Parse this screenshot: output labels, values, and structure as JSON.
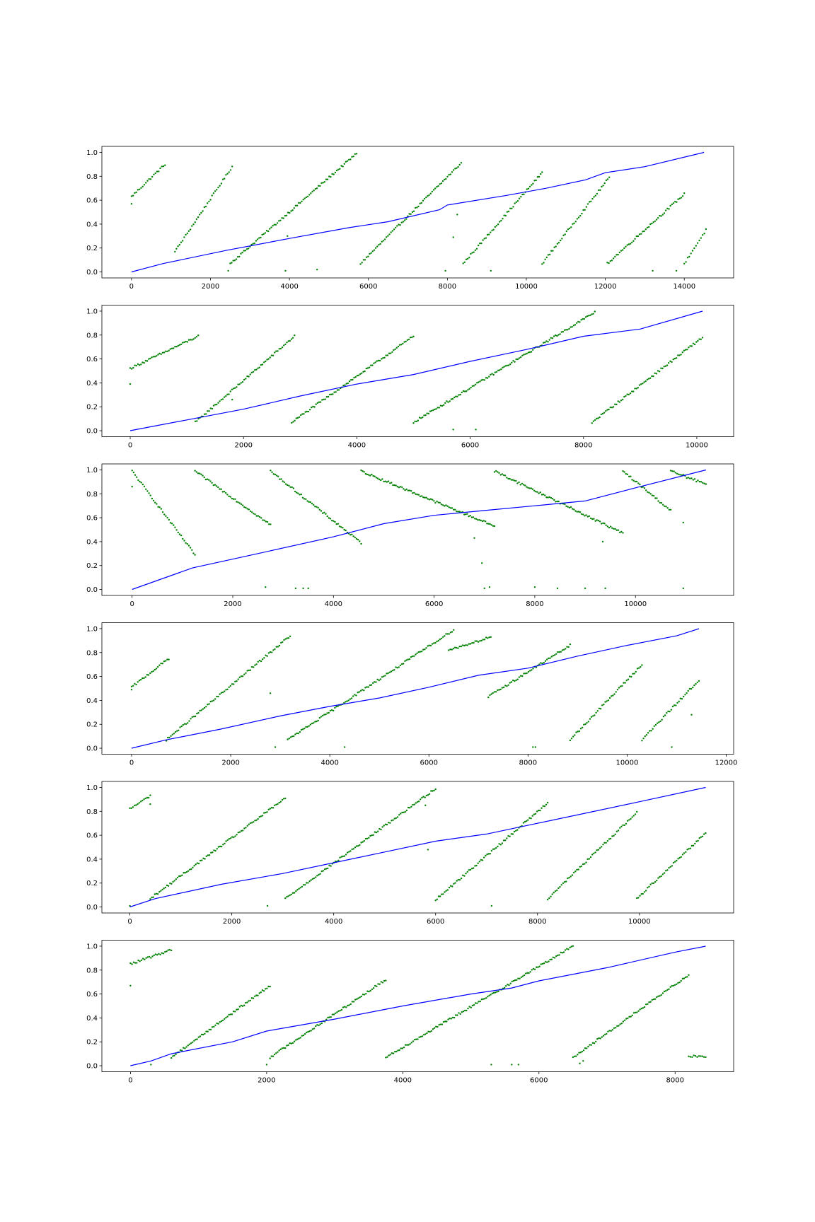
{
  "figure": {
    "background": "#ffffff"
  },
  "colors": {
    "scatter": "#008000",
    "line": "#0000ff",
    "axes": "#000000"
  },
  "chart_data": [
    {
      "type": "scatter",
      "title": "",
      "xlabel": "",
      "ylabel": "",
      "xlim": [
        -750,
        15250
      ],
      "ylim": [
        -0.05,
        1.05
      ],
      "xticks": [
        0,
        2000,
        4000,
        6000,
        8000,
        10000,
        12000,
        14000
      ],
      "yticks": [
        0.0,
        0.2,
        0.4,
        0.6,
        0.8,
        1.0
      ],
      "series": [
        {
          "kind": "scatter",
          "runs": [
            [
              0,
              850,
              0.63,
              0.9
            ],
            [
              1100,
              2550,
              0.17,
              0.88
            ],
            [
              2500,
              5700,
              0.07,
              0.99
            ],
            [
              5800,
              8350,
              0.07,
              0.91
            ],
            [
              8400,
              10400,
              0.07,
              0.83
            ],
            [
              10400,
              12100,
              0.07,
              0.79
            ],
            [
              12050,
              14000,
              0.07,
              0.65
            ],
            [
              14000,
              14550,
              0.07,
              0.35
            ]
          ],
          "extra": [
            [
              0,
              0.57
            ],
            [
              2450,
              0.01
            ],
            [
              3900,
              0.01
            ],
            [
              3950,
              0.3
            ],
            [
              4700,
              0.02
            ],
            [
              7950,
              0.01
            ],
            [
              8150,
              0.29
            ],
            [
              8250,
              0.48
            ],
            [
              9100,
              0.01
            ],
            [
              13200,
              0.01
            ],
            [
              13800,
              0.01
            ]
          ]
        },
        {
          "kind": "line",
          "points": [
            [
              0,
              0.0
            ],
            [
              800,
              0.07
            ],
            [
              2400,
              0.18
            ],
            [
              4000,
              0.28
            ],
            [
              5500,
              0.37
            ],
            [
              6500,
              0.42
            ],
            [
              7800,
              0.52
            ],
            [
              8000,
              0.56
            ],
            [
              9500,
              0.64
            ],
            [
              10500,
              0.7
            ],
            [
              11500,
              0.77
            ],
            [
              12000,
              0.83
            ],
            [
              13000,
              0.88
            ],
            [
              14500,
              1.0
            ]
          ]
        }
      ]
    },
    {
      "type": "scatter",
      "title": "",
      "xlabel": "",
      "ylabel": "",
      "xlim": [
        -500,
        10650
      ],
      "ylim": [
        -0.05,
        1.05
      ],
      "xticks": [
        0,
        2000,
        4000,
        6000,
        8000,
        10000
      ],
      "yticks": [
        0.0,
        0.2,
        0.4,
        0.6,
        0.8,
        1.0
      ],
      "series": [
        {
          "kind": "scatter",
          "runs": [
            [
              0,
              1200,
              0.52,
              0.79
            ],
            [
              1150,
              2900,
              0.07,
              0.79
            ],
            [
              2850,
              5000,
              0.07,
              0.79
            ],
            [
              5000,
              8200,
              0.07,
              0.99
            ],
            [
              8150,
              10100,
              0.07,
              0.78
            ]
          ],
          "extra": [
            [
              0,
              0.39
            ],
            [
              1800,
              0.26
            ],
            [
              5700,
              0.01
            ],
            [
              6100,
              0.01
            ]
          ]
        },
        {
          "kind": "line",
          "points": [
            [
              0,
              0.0
            ],
            [
              1000,
              0.09
            ],
            [
              2000,
              0.18
            ],
            [
              3000,
              0.29
            ],
            [
              4000,
              0.39
            ],
            [
              5000,
              0.47
            ],
            [
              6000,
              0.58
            ],
            [
              7000,
              0.68
            ],
            [
              8000,
              0.79
            ],
            [
              9000,
              0.85
            ],
            [
              10100,
              1.0
            ]
          ]
        }
      ]
    },
    {
      "type": "scatter",
      "title": "",
      "xlabel": "",
      "ylabel": "",
      "xlim": [
        -600,
        11950
      ],
      "ylim": [
        -0.05,
        1.05
      ],
      "xticks": [
        0,
        2000,
        4000,
        6000,
        8000,
        10000
      ],
      "yticks": [
        0.0,
        0.2,
        0.4,
        0.6,
        0.8,
        1.0
      ],
      "series": [
        {
          "kind": "scatter",
          "runs": [
            [
              0,
              1250,
              0.99,
              0.29
            ],
            [
              1250,
              2750,
              0.99,
              0.54
            ],
            [
              2750,
              4550,
              0.99,
              0.39
            ],
            [
              4550,
              7200,
              0.99,
              0.53
            ],
            [
              7200,
              9750,
              0.99,
              0.47
            ],
            [
              9750,
              10700,
              0.99,
              0.66
            ],
            [
              10700,
              11400,
              0.99,
              0.88
            ]
          ],
          "extra": [
            [
              0,
              0.86
            ],
            [
              2650,
              0.02
            ],
            [
              3250,
              0.01
            ],
            [
              3400,
              0.01
            ],
            [
              3500,
              0.01
            ],
            [
              6800,
              0.43
            ],
            [
              6950,
              0.22
            ],
            [
              7000,
              0.01
            ],
            [
              7100,
              0.02
            ],
            [
              8000,
              0.02
            ],
            [
              8450,
              0.01
            ],
            [
              9000,
              0.01
            ],
            [
              9350,
              0.4
            ],
            [
              9400,
              0.01
            ],
            [
              10950,
              0.01
            ],
            [
              10950,
              0.56
            ]
          ]
        },
        {
          "kind": "line",
          "points": [
            [
              0,
              0.0
            ],
            [
              1200,
              0.18
            ],
            [
              2500,
              0.3
            ],
            [
              4000,
              0.44
            ],
            [
              5000,
              0.55
            ],
            [
              6000,
              0.62
            ],
            [
              7000,
              0.66
            ],
            [
              8000,
              0.7
            ],
            [
              9000,
              0.74
            ],
            [
              10000,
              0.85
            ],
            [
              11400,
              1.0
            ]
          ]
        }
      ]
    },
    {
      "type": "scatter",
      "title": "",
      "xlabel": "",
      "ylabel": "",
      "xlim": [
        -600,
        12150
      ],
      "ylim": [
        -0.05,
        1.05
      ],
      "xticks": [
        0,
        2000,
        4000,
        6000,
        8000,
        10000,
        12000
      ],
      "yticks": [
        0.0,
        0.2,
        0.4,
        0.6,
        0.8,
        1.0
      ],
      "series": [
        {
          "kind": "scatter",
          "runs": [
            [
              0,
              750,
              0.51,
              0.75
            ],
            [
              700,
              3200,
              0.07,
              0.94
            ],
            [
              3150,
              6500,
              0.07,
              0.99
            ],
            [
              6400,
              7250,
              0.82,
              0.93
            ],
            [
              7200,
              8850,
              0.43,
              0.86
            ],
            [
              8850,
              10300,
              0.07,
              0.7
            ],
            [
              10300,
              11450,
              0.07,
              0.57
            ]
          ],
          "extra": [
            [
              0,
              0.49
            ],
            [
              2800,
              0.46
            ],
            [
              2900,
              0.01
            ],
            [
              4300,
              0.01
            ],
            [
              8100,
              0.01
            ],
            [
              8150,
              0.01
            ],
            [
              10900,
              0.01
            ],
            [
              11300,
              0.28
            ]
          ]
        },
        {
          "kind": "line",
          "points": [
            [
              0,
              0.0
            ],
            [
              700,
              0.07
            ],
            [
              1800,
              0.16
            ],
            [
              3000,
              0.27
            ],
            [
              4000,
              0.35
            ],
            [
              5000,
              0.42
            ],
            [
              6000,
              0.51
            ],
            [
              7000,
              0.61
            ],
            [
              8000,
              0.67
            ],
            [
              9000,
              0.77
            ],
            [
              10000,
              0.86
            ],
            [
              11000,
              0.94
            ],
            [
              11450,
              1.0
            ]
          ]
        }
      ]
    },
    {
      "type": "scatter",
      "title": "",
      "xlabel": "",
      "ylabel": "",
      "xlim": [
        -550,
        11850
      ],
      "ylim": [
        -0.05,
        1.05
      ],
      "xticks": [
        0,
        2000,
        4000,
        6000,
        8000,
        10000
      ],
      "yticks": [
        0.0,
        0.2,
        0.4,
        0.6,
        0.8,
        1.0
      ],
      "series": [
        {
          "kind": "scatter",
          "runs": [
            [
              0,
              400,
              0.82,
              0.93
            ],
            [
              400,
              3050,
              0.07,
              0.91
            ],
            [
              3050,
              6000,
              0.07,
              0.99
            ],
            [
              6000,
              8200,
              0.06,
              0.87
            ],
            [
              8200,
              9950,
              0.07,
              0.79
            ],
            [
              9950,
              11300,
              0.07,
              0.62
            ]
          ],
          "extra": [
            [
              0,
              0.01
            ],
            [
              400,
              0.86
            ],
            [
              2700,
              0.01
            ],
            [
              5800,
              0.85
            ],
            [
              5850,
              0.48
            ],
            [
              7100,
              0.01
            ]
          ]
        },
        {
          "kind": "line",
          "points": [
            [
              0,
              0.0
            ],
            [
              500,
              0.07
            ],
            [
              1800,
              0.19
            ],
            [
              3000,
              0.28
            ],
            [
              4000,
              0.37
            ],
            [
              5000,
              0.46
            ],
            [
              6000,
              0.55
            ],
            [
              7000,
              0.61
            ],
            [
              8000,
              0.7
            ],
            [
              9000,
              0.79
            ],
            [
              10000,
              0.88
            ],
            [
              11300,
              1.0
            ]
          ]
        }
      ]
    },
    {
      "type": "scatter",
      "title": "",
      "xlabel": "",
      "ylabel": "",
      "xlim": [
        -420,
        8860
      ],
      "ylim": [
        -0.05,
        1.05
      ],
      "xticks": [
        0,
        2000,
        4000,
        6000,
        8000
      ],
      "yticks": [
        0.0,
        0.2,
        0.4,
        0.6,
        0.8,
        1.0
      ],
      "series": [
        {
          "kind": "scatter",
          "runs": [
            [
              0,
              600,
              0.85,
              0.97
            ],
            [
              600,
              2050,
              0.07,
              0.67
            ],
            [
              2050,
              3750,
              0.07,
              0.72
            ],
            [
              3750,
              6500,
              0.07,
              1.0
            ],
            [
              6500,
              8200,
              0.07,
              0.76
            ],
            [
              8200,
              8450,
              0.08,
              0.08
            ]
          ],
          "extra": [
            [
              0,
              0.67
            ],
            [
              300,
              0.01
            ],
            [
              2000,
              0.01
            ],
            [
              5300,
              0.01
            ],
            [
              5600,
              0.01
            ],
            [
              5700,
              0.01
            ],
            [
              6600,
              0.02
            ],
            [
              6650,
              0.04
            ]
          ]
        },
        {
          "kind": "line",
          "points": [
            [
              0,
              0.0
            ],
            [
              300,
              0.04
            ],
            [
              600,
              0.1
            ],
            [
              1500,
              0.2
            ],
            [
              2000,
              0.29
            ],
            [
              3000,
              0.39
            ],
            [
              4000,
              0.5
            ],
            [
              5000,
              0.6
            ],
            [
              5600,
              0.65
            ],
            [
              6000,
              0.71
            ],
            [
              7000,
              0.82
            ],
            [
              8000,
              0.95
            ],
            [
              8450,
              1.0
            ]
          ]
        }
      ]
    }
  ]
}
